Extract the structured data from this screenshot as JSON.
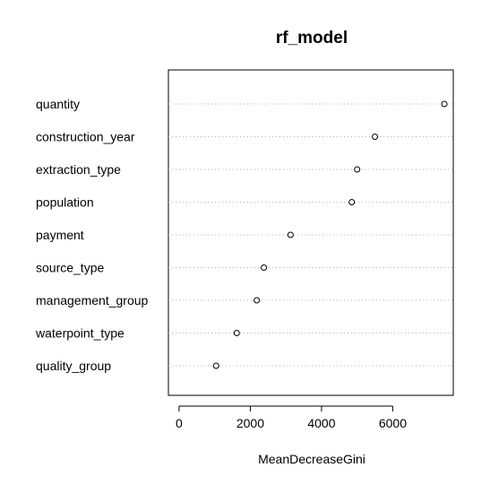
{
  "chart_data": {
    "type": "scatter",
    "title": "rf_model",
    "xlabel": "MeanDecreaseGini",
    "ylabel": "",
    "xlim": [
      -300,
      7700
    ],
    "xticks": [
      0,
      2000,
      4000,
      6000
    ],
    "grid": "horizontal-dotted",
    "categories": [
      "quantity",
      "construction_year",
      "extraction_type",
      "population",
      "payment",
      "source_type",
      "management_group",
      "waterpoint_type",
      "quality_group"
    ],
    "values": [
      7450,
      5500,
      5000,
      4850,
      3130,
      2380,
      2180,
      1620,
      1040
    ]
  }
}
